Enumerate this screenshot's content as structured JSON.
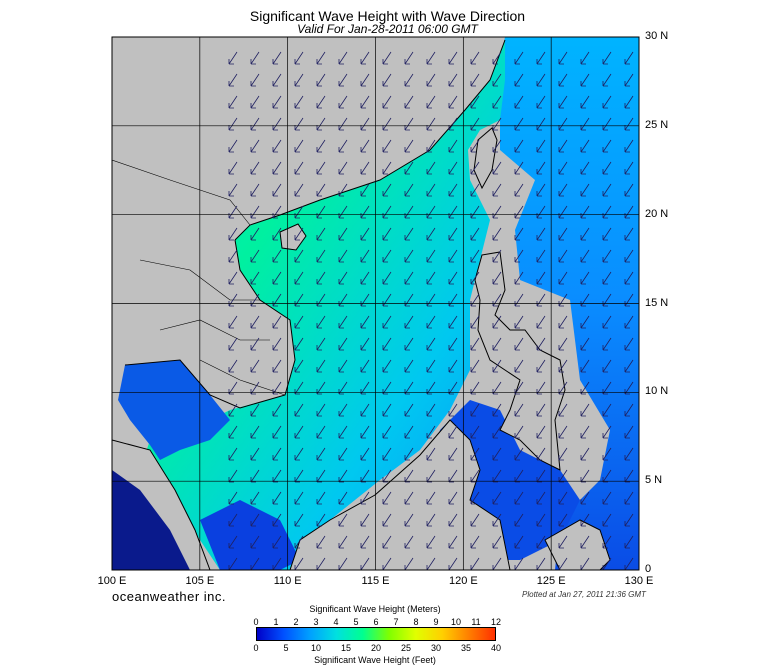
{
  "title": "Significant Wave Height with Wave Direction",
  "subtitle": "Valid For Jan-28-2011 06:00 GMT",
  "lat_labels": [
    "30 N",
    "25 N",
    "20 N",
    "15 N",
    "10 N",
    "5 N",
    "0"
  ],
  "lon_labels": [
    "100 E",
    "105 E",
    "110 E",
    "115 E",
    "120 E",
    "125 E",
    "130 E"
  ],
  "brand": "oceanweather inc.",
  "plotted": "Plotted at Jan 27, 2011 21:36 GMT",
  "colorbar": {
    "title": "Significant Wave Height (Meters)",
    "footer": "Significant Wave Height (Feet)",
    "meters_ticks": [
      "0",
      "1",
      "2",
      "3",
      "4",
      "5",
      "6",
      "7",
      "8",
      "9",
      "10",
      "11",
      "12"
    ],
    "feet_ticks": [
      "0",
      "5",
      "10",
      "15",
      "20",
      "25",
      "30",
      "35",
      "40"
    ],
    "colors": [
      "#0000c8",
      "#0050ff",
      "#00a0ff",
      "#00e0e0",
      "#00ff90",
      "#80ff00",
      "#e0ff00",
      "#ffd000",
      "#ff8000",
      "#ff3000"
    ]
  },
  "colors": {
    "land": "#c0c0c0",
    "deep_blue": "#0a3ce6",
    "mid_blue": "#0a8cff",
    "cyan": "#00d2f0",
    "green": "#00f0a0"
  },
  "map": {
    "lon_range": [
      100,
      130
    ],
    "lat_range": [
      0,
      30
    ],
    "wave_direction": "from north-east"
  }
}
